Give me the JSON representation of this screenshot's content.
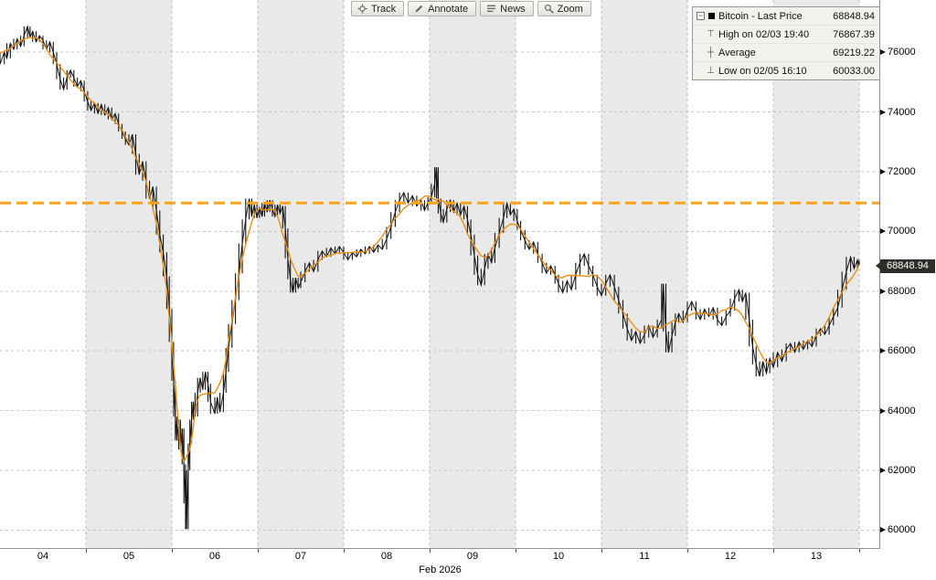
{
  "toolbar": {
    "buttons": [
      {
        "label": "Track",
        "icon": "crosshair-track-icon"
      },
      {
        "label": "Annotate",
        "icon": "pencil-annotate-icon"
      },
      {
        "label": "News",
        "icon": "news-lines-icon"
      },
      {
        "label": "Zoom",
        "icon": "magnifier-zoom-icon"
      }
    ]
  },
  "legend": {
    "rows": [
      {
        "marker": "black-square",
        "label": "Bitcoin - Last Price",
        "value": "68848.94"
      },
      {
        "marker": "⊤",
        "label": "High on 02/03 19:40",
        "value": "76867.39"
      },
      {
        "marker": "┼",
        "label": "Average",
        "value": "69219.22"
      },
      {
        "marker": "⊥",
        "label": "Low on 02/05 16:10",
        "value": "60033.00"
      }
    ]
  },
  "y_axis": {
    "ticks": [
      76000,
      74000,
      72000,
      70000,
      68000,
      66000,
      64000,
      62000,
      60000
    ],
    "tick_marker": "right-pointing-triangle",
    "last_price_badge": "68848.94"
  },
  "x_axis": {
    "tick_labels": [
      "04",
      "05",
      "06",
      "07",
      "08",
      "09",
      "10",
      "11",
      "12",
      "13"
    ],
    "tick_days": [
      4,
      5,
      6,
      7,
      8,
      9,
      10,
      11,
      12,
      13
    ],
    "title": "Feb 2026"
  },
  "colors": {
    "accent_orange": "#F9A21B",
    "ma_orange": "#ED8E12",
    "price_black": "#141414",
    "band_gray": "#e9e9e9",
    "band_white": "#ffffff",
    "grid": "#c6c6c6",
    "badge_bg": "#2e2d2a",
    "legend_bg": "#f2f1ed"
  },
  "chart_data": {
    "type": "line",
    "title": "Bitcoin - Last Price",
    "xlabel": "Feb 2026",
    "x_range_days": [
      3.5,
      13.76
    ],
    "ylim": [
      59400,
      77750
    ],
    "y_gridlines": [
      60000,
      62000,
      64000,
      66000,
      68000,
      70000,
      72000,
      74000,
      76000
    ],
    "grid": "dashed",
    "legend_position": "top-right",
    "last_price": 68848.94,
    "high_on": "02/03 19:40",
    "high": 76867.39,
    "average": 69219.22,
    "low_on": "02/05 16:10",
    "low": 60033.0,
    "orange_dashed_level": 70950,
    "gray_band_days": [
      5,
      7,
      9,
      11,
      13
    ],
    "series": [
      {
        "name": "Bitcoin - Last Price",
        "points": [
          [
            3.5,
            75600
          ],
          [
            3.55,
            76000
          ],
          [
            3.58,
            75800
          ],
          [
            3.62,
            76300
          ],
          [
            3.66,
            76100
          ],
          [
            3.7,
            76450
          ],
          [
            3.74,
            76200
          ],
          [
            3.78,
            76550
          ],
          [
            3.82,
            76867.39
          ],
          [
            3.85,
            76500
          ],
          [
            3.88,
            76700
          ],
          [
            3.92,
            76350
          ],
          [
            3.96,
            76550
          ],
          [
            4.0,
            76400
          ],
          [
            4.04,
            76100
          ],
          [
            4.08,
            76350
          ],
          [
            4.12,
            76000
          ],
          [
            4.16,
            75600
          ],
          [
            4.2,
            75100
          ],
          [
            4.24,
            74750
          ],
          [
            4.28,
            75150
          ],
          [
            4.32,
            75400
          ],
          [
            4.36,
            75150
          ],
          [
            4.4,
            74850
          ],
          [
            4.44,
            75050
          ],
          [
            4.48,
            74700
          ],
          [
            4.52,
            74350
          ],
          [
            4.56,
            74050
          ],
          [
            4.6,
            74300
          ],
          [
            4.64,
            73950
          ],
          [
            4.68,
            74250
          ],
          [
            4.72,
            73900
          ],
          [
            4.76,
            74150
          ],
          [
            4.8,
            73750
          ],
          [
            4.84,
            73950
          ],
          [
            4.88,
            73600
          ],
          [
            4.92,
            73350
          ],
          [
            4.96,
            73100
          ],
          [
            5.0,
            72900
          ],
          [
            5.04,
            73250
          ],
          [
            5.08,
            72600
          ],
          [
            5.12,
            71900
          ],
          [
            5.16,
            72350
          ],
          [
            5.2,
            71700
          ],
          [
            5.24,
            71100
          ],
          [
            5.28,
            71500
          ],
          [
            5.32,
            70700
          ],
          [
            5.36,
            69900
          ],
          [
            5.4,
            69300
          ],
          [
            5.44,
            68500
          ],
          [
            5.47,
            67400
          ],
          [
            5.5,
            66300
          ],
          [
            5.52,
            65000
          ],
          [
            5.54,
            63800
          ],
          [
            5.56,
            63000
          ],
          [
            5.58,
            63700
          ],
          [
            5.6,
            62700
          ],
          [
            5.62,
            63400
          ],
          [
            5.64,
            62200
          ],
          [
            5.66,
            60900
          ],
          [
            5.67,
            60033
          ],
          [
            5.69,
            62000
          ],
          [
            5.71,
            62900
          ],
          [
            5.73,
            63700
          ],
          [
            5.75,
            64300
          ],
          [
            5.77,
            63800
          ],
          [
            5.8,
            64600
          ],
          [
            5.83,
            65100
          ],
          [
            5.86,
            64700
          ],
          [
            5.89,
            65300
          ],
          [
            5.92,
            64900
          ],
          [
            5.95,
            64300
          ],
          [
            6.0,
            63900
          ],
          [
            6.03,
            64450
          ],
          [
            6.06,
            63950
          ],
          [
            6.1,
            64600
          ],
          [
            6.13,
            65300
          ],
          [
            6.16,
            66100
          ],
          [
            6.2,
            66900
          ],
          [
            6.24,
            67700
          ],
          [
            6.28,
            68600
          ],
          [
            6.32,
            69600
          ],
          [
            6.36,
            70400
          ],
          [
            6.4,
            71100
          ],
          [
            6.43,
            70500
          ],
          [
            6.46,
            70900
          ],
          [
            6.49,
            70450
          ],
          [
            6.52,
            70800
          ],
          [
            6.55,
            70500
          ],
          [
            6.58,
            70950
          ],
          [
            6.61,
            70650
          ],
          [
            6.64,
            71050
          ],
          [
            6.67,
            70750
          ],
          [
            6.7,
            70500
          ],
          [
            6.73,
            70900
          ],
          [
            6.76,
            70600
          ],
          [
            6.79,
            70850
          ],
          [
            6.82,
            70100
          ],
          [
            6.85,
            69100
          ],
          [
            6.88,
            68400
          ],
          [
            6.91,
            67950
          ],
          [
            6.94,
            68450
          ],
          [
            6.97,
            68100
          ],
          [
            7.0,
            68300
          ],
          [
            7.05,
            68650
          ],
          [
            7.1,
            68950
          ],
          [
            7.15,
            68650
          ],
          [
            7.2,
            69050
          ],
          [
            7.25,
            69350
          ],
          [
            7.3,
            69150
          ],
          [
            7.35,
            69450
          ],
          [
            7.4,
            69250
          ],
          [
            7.45,
            69500
          ],
          [
            7.5,
            69300
          ],
          [
            7.55,
            69050
          ],
          [
            7.6,
            69300
          ],
          [
            7.65,
            69150
          ],
          [
            7.7,
            69400
          ],
          [
            7.75,
            69250
          ],
          [
            7.8,
            69500
          ],
          [
            7.85,
            69300
          ],
          [
            7.9,
            69550
          ],
          [
            7.95,
            69400
          ],
          [
            8.0,
            69750
          ],
          [
            8.05,
            70150
          ],
          [
            8.1,
            70650
          ],
          [
            8.15,
            71050
          ],
          [
            8.2,
            71300
          ],
          [
            8.25,
            70950
          ],
          [
            8.3,
            71200
          ],
          [
            8.35,
            70850
          ],
          [
            8.4,
            71050
          ],
          [
            8.44,
            70700
          ],
          [
            8.48,
            70950
          ],
          [
            8.52,
            71150
          ],
          [
            8.56,
            71600
          ],
          [
            8.58,
            72150
          ],
          [
            8.6,
            71100
          ],
          [
            8.63,
            70600
          ],
          [
            8.66,
            70300
          ],
          [
            8.7,
            70750
          ],
          [
            8.74,
            71050
          ],
          [
            8.78,
            70650
          ],
          [
            8.82,
            70950
          ],
          [
            8.86,
            70550
          ],
          [
            8.9,
            70850
          ],
          [
            8.94,
            70400
          ],
          [
            8.98,
            69900
          ],
          [
            9.02,
            69200
          ],
          [
            9.06,
            68550
          ],
          [
            9.1,
            68200
          ],
          [
            9.14,
            68750
          ],
          [
            9.18,
            69250
          ],
          [
            9.22,
            68950
          ],
          [
            9.26,
            69450
          ],
          [
            9.31,
            69950
          ],
          [
            9.36,
            70450
          ],
          [
            9.4,
            70950
          ],
          [
            9.44,
            70550
          ],
          [
            9.48,
            70750
          ],
          [
            9.52,
            70350
          ],
          [
            9.56,
            70050
          ],
          [
            9.61,
            69700
          ],
          [
            9.66,
            69400
          ],
          [
            9.71,
            69650
          ],
          [
            9.76,
            69250
          ],
          [
            9.81,
            68950
          ],
          [
            9.86,
            68600
          ],
          [
            9.91,
            68850
          ],
          [
            9.96,
            68550
          ],
          [
            10.0,
            68250
          ],
          [
            10.05,
            67950
          ],
          [
            10.1,
            68350
          ],
          [
            10.15,
            68050
          ],
          [
            10.2,
            68550
          ],
          [
            10.25,
            68950
          ],
          [
            10.3,
            69250
          ],
          [
            10.35,
            68850
          ],
          [
            10.4,
            68550
          ],
          [
            10.45,
            68150
          ],
          [
            10.5,
            67850
          ],
          [
            10.55,
            68250
          ],
          [
            10.6,
            68550
          ],
          [
            10.65,
            68150
          ],
          [
            10.7,
            67700
          ],
          [
            10.75,
            67250
          ],
          [
            10.8,
            66750
          ],
          [
            10.85,
            66350
          ],
          [
            10.9,
            66650
          ],
          [
            10.95,
            66250
          ],
          [
            11.0,
            66550
          ],
          [
            11.05,
            66850
          ],
          [
            11.1,
            66450
          ],
          [
            11.15,
            66750
          ],
          [
            11.2,
            67050
          ],
          [
            11.22,
            68250
          ],
          [
            11.25,
            66650
          ],
          [
            11.28,
            65950
          ],
          [
            11.32,
            66500
          ],
          [
            11.36,
            66950
          ],
          [
            11.4,
            67250
          ],
          [
            11.45,
            66950
          ],
          [
            11.5,
            67350
          ],
          [
            11.55,
            67650
          ],
          [
            11.6,
            67350
          ],
          [
            11.65,
            67050
          ],
          [
            11.7,
            67400
          ],
          [
            11.75,
            67150
          ],
          [
            11.8,
            67450
          ],
          [
            11.85,
            67050
          ],
          [
            11.9,
            66850
          ],
          [
            11.95,
            67150
          ],
          [
            12.0,
            67350
          ],
          [
            12.05,
            67750
          ],
          [
            12.1,
            68050
          ],
          [
            12.14,
            67650
          ],
          [
            12.18,
            67950
          ],
          [
            12.22,
            67050
          ],
          [
            12.26,
            66150
          ],
          [
            12.3,
            65550
          ],
          [
            12.34,
            65150
          ],
          [
            12.38,
            65650
          ],
          [
            12.42,
            65250
          ],
          [
            12.46,
            65750
          ],
          [
            12.5,
            65450
          ],
          [
            12.55,
            65950
          ],
          [
            12.6,
            65650
          ],
          [
            12.65,
            66050
          ],
          [
            12.7,
            66250
          ],
          [
            12.75,
            65950
          ],
          [
            12.8,
            66300
          ],
          [
            12.85,
            66050
          ],
          [
            12.9,
            66350
          ],
          [
            12.95,
            66150
          ],
          [
            13.0,
            66500
          ],
          [
            13.05,
            66750
          ],
          [
            13.1,
            66550
          ],
          [
            13.15,
            66850
          ],
          [
            13.2,
            67150
          ],
          [
            13.25,
            67450
          ],
          [
            13.3,
            68050
          ],
          [
            13.35,
            68650
          ],
          [
            13.4,
            69150
          ],
          [
            13.44,
            68750
          ],
          [
            13.48,
            69050
          ],
          [
            13.5,
            68848.94
          ]
        ]
      }
    ]
  }
}
